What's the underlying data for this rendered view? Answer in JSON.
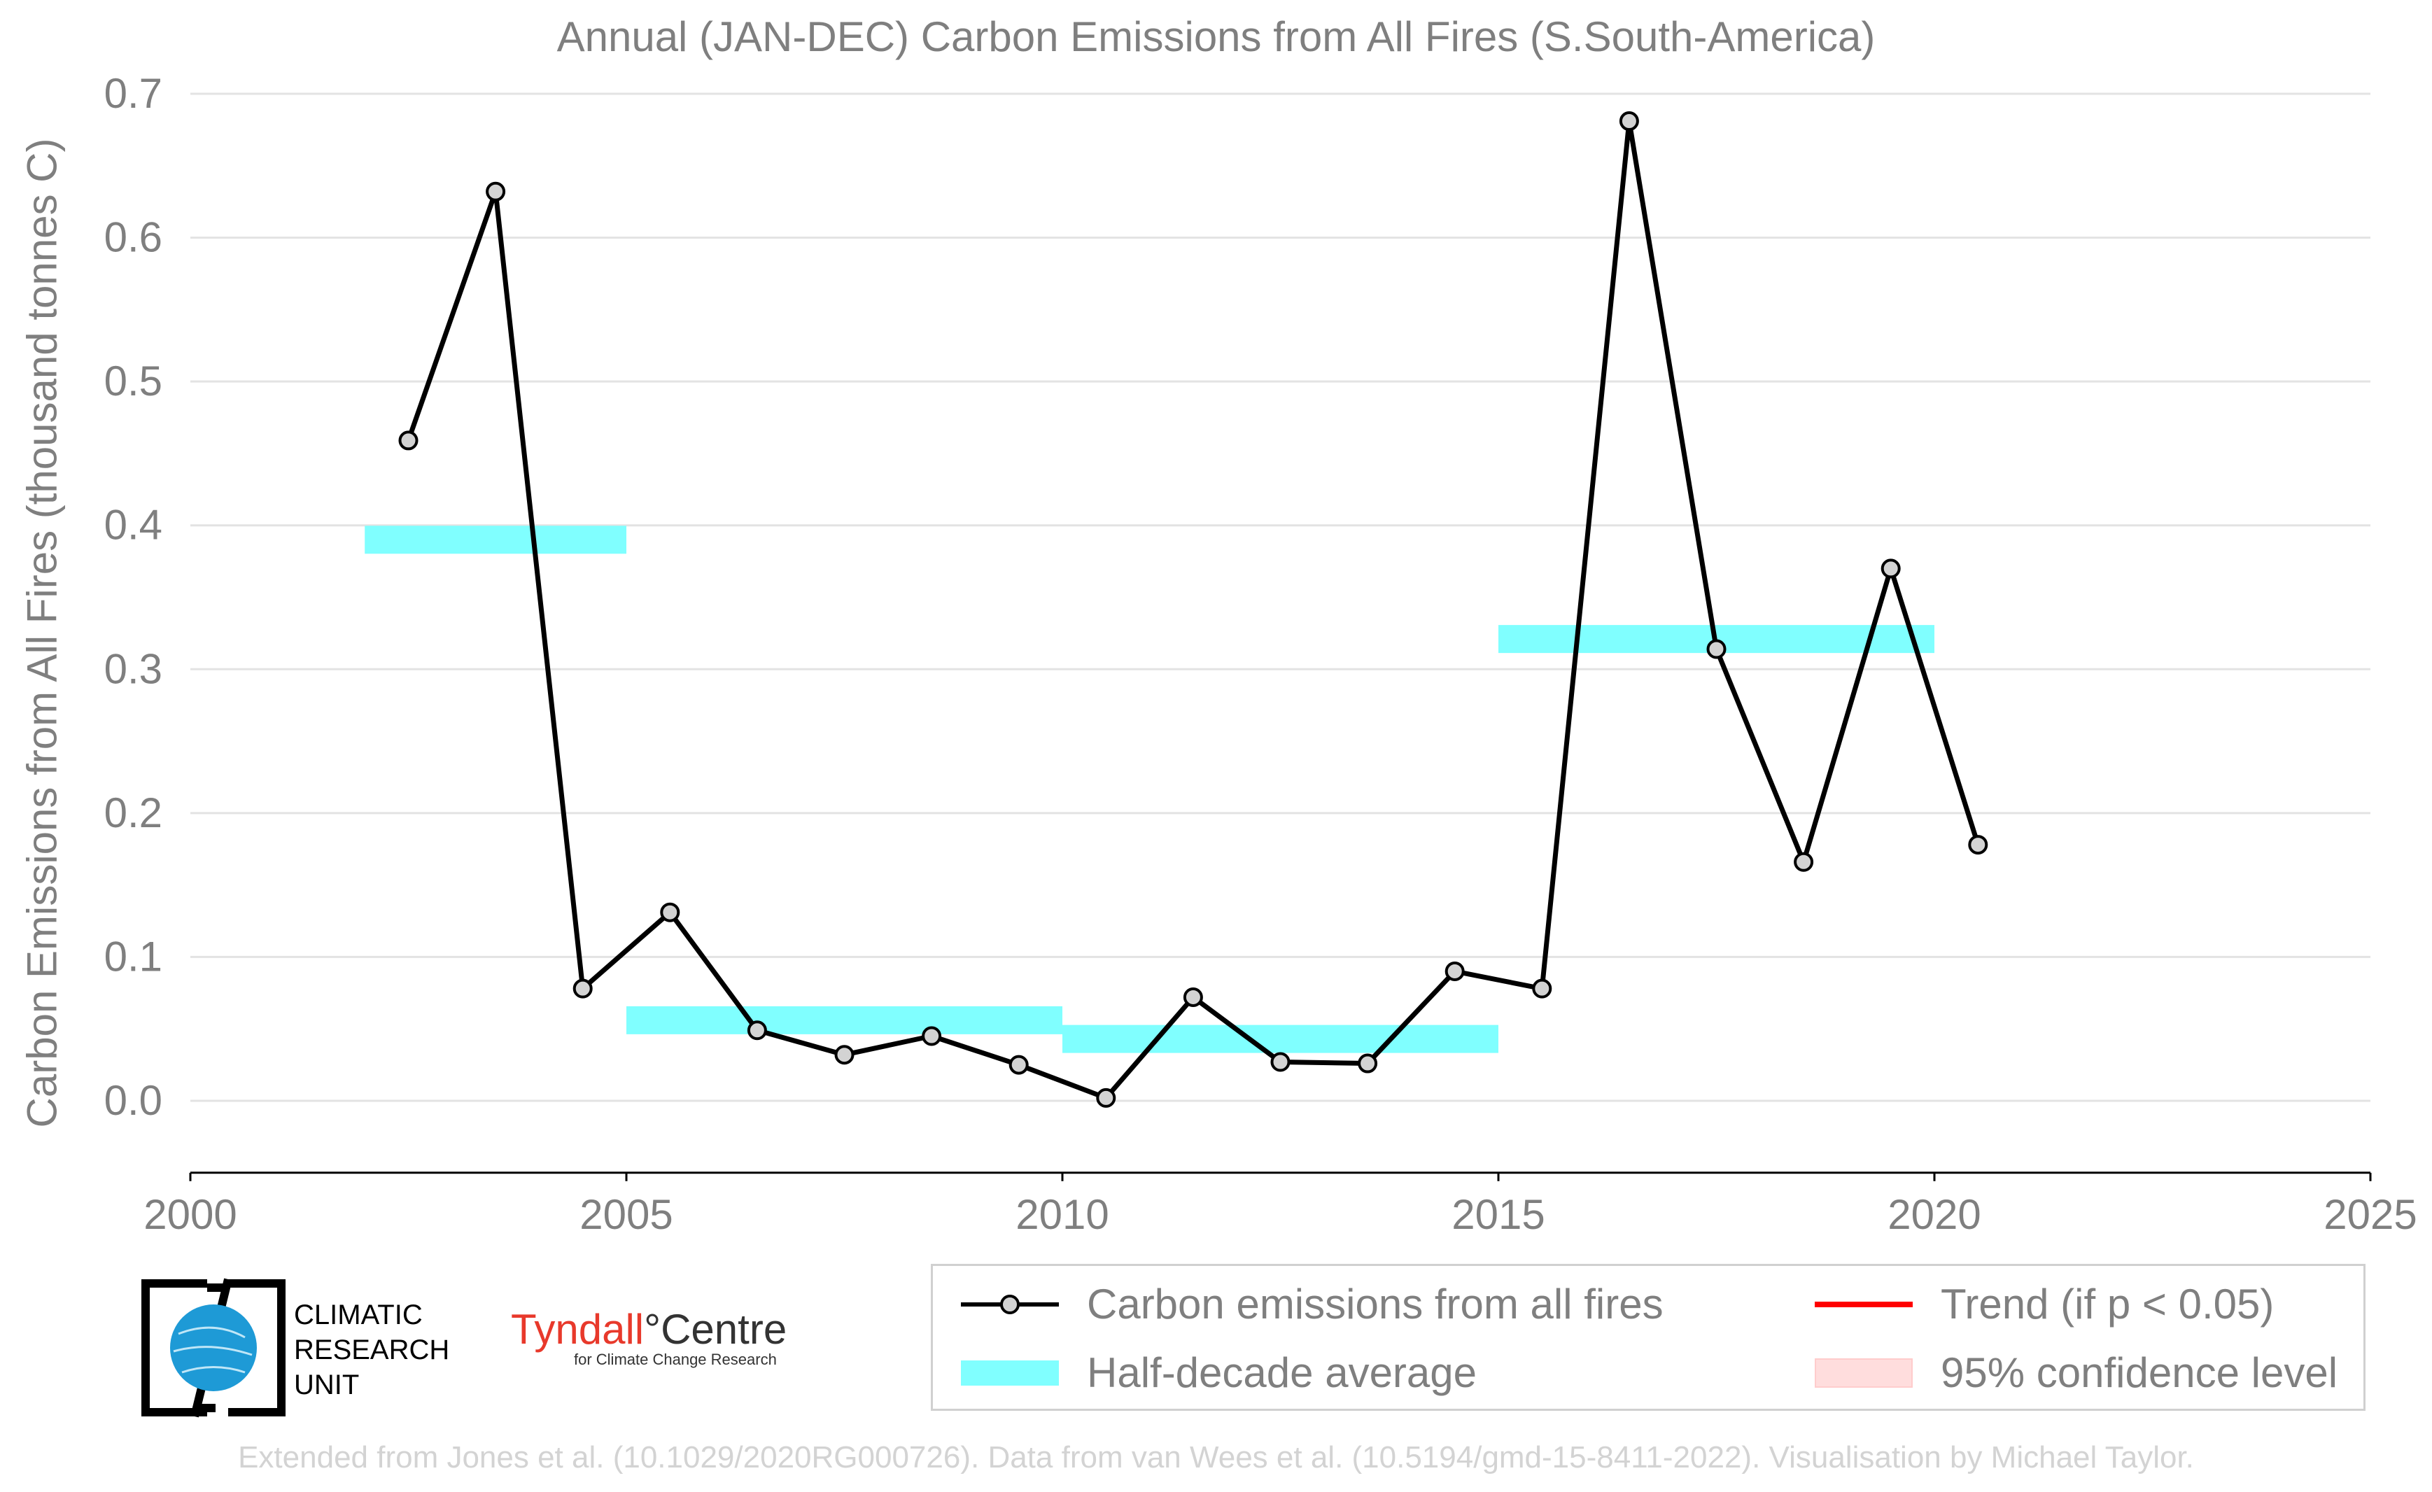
{
  "title": "Annual (JAN-DEC) Carbon Emissions from All Fires (S.South-America)",
  "ylabel": "Carbon Emissions from All Fires (thousand tonnes C)",
  "footer": "Extended from Jones et al. (10.1029/2020RG000726). Data from van Wees et al. (10.5194/gmd-15-8411-2022). Visualisation by Michael Taylor.",
  "legend": {
    "series_label": "Carbon emissions from all fires",
    "avg_label": "Half-decade average",
    "trend_label": "Trend (if p < 0.05)",
    "ci_label": "95% confidence level"
  },
  "logos": {
    "cru_line1": "CLIMATIC",
    "cru_line2": "RESEARCH",
    "cru_line3": "UNIT",
    "tyndall_main_a": "Tyndall",
    "tyndall_main_b": "°Centre",
    "tyndall_sub": "for Climate Change Research"
  },
  "colors": {
    "line": "#000000",
    "marker_fill": "#d3d3d3",
    "average": "#80ffff",
    "trend": "#ff0000",
    "confidence": "#ffdddd",
    "text": "#7f7f7f"
  },
  "chart_data": {
    "type": "line",
    "title": "Annual (JAN-DEC) Carbon Emissions from All Fires (S.South-America)",
    "xlabel": "",
    "ylabel": "Carbon Emissions from All Fires (thousand tonnes C)",
    "xlim": [
      2000,
      2025
    ],
    "ylim": [
      -0.05,
      0.7
    ],
    "xticks": [
      2000,
      2005,
      2010,
      2015,
      2020,
      2025
    ],
    "yticks": [
      0.0,
      0.1,
      0.2,
      0.3,
      0.4,
      0.5,
      0.6,
      0.7
    ],
    "ytick_labels": [
      "0.0",
      "0.1",
      "0.2",
      "0.3",
      "0.4",
      "0.5",
      "0.6",
      "0.7"
    ],
    "grid": "horizontal",
    "legend_position": "bottom",
    "series": [
      {
        "name": "Carbon emissions from all fires",
        "x": [
          2002.5,
          2003.5,
          2004.5,
          2005.5,
          2006.5,
          2007.5,
          2008.5,
          2009.5,
          2010.5,
          2011.5,
          2012.5,
          2013.5,
          2014.5,
          2015.5,
          2016.5,
          2017.5,
          2018.5,
          2019.5,
          2020.5
        ],
        "values": [
          0.459,
          0.632,
          0.078,
          0.131,
          0.049,
          0.032,
          0.045,
          0.025,
          0.002,
          0.072,
          0.027,
          0.026,
          0.09,
          0.078,
          0.681,
          0.314,
          0.166,
          0.37,
          0.178
        ]
      }
    ],
    "half_decade_average": [
      {
        "x_start": 2002,
        "x_end": 2005,
        "value": 0.39
      },
      {
        "x_start": 2005,
        "x_end": 2010,
        "value": 0.056
      },
      {
        "x_start": 2010,
        "x_end": 2015,
        "value": 0.043
      },
      {
        "x_start": 2015,
        "x_end": 2020,
        "value": 0.321
      }
    ]
  }
}
